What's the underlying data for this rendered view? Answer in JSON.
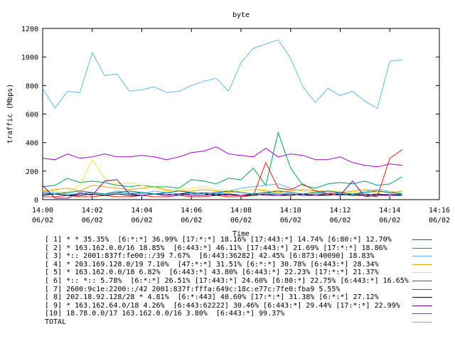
{
  "chart_data": {
    "type": "line",
    "title": "byte",
    "xlabel": "Time",
    "ylabel": "traffic (Mbps)",
    "ylim": [
      0,
      1200
    ],
    "yticks": [
      0,
      200,
      400,
      600,
      800,
      1000,
      1200
    ],
    "xlim": [
      "14:00",
      "14:16"
    ],
    "xticks": [
      {
        "time": "14:00",
        "date": "06/02"
      },
      {
        "time": "14:02",
        "date": "06/02"
      },
      {
        "time": "14:04",
        "date": "06/02"
      },
      {
        "time": "14:06",
        "date": "06/02"
      },
      {
        "time": "14:08",
        "date": "06/02"
      },
      {
        "time": "14:10",
        "date": "06/02"
      },
      {
        "time": "14:12",
        "date": "06/02"
      },
      {
        "time": "14:14",
        "date": "06/02"
      },
      {
        "time": "14:16",
        "date": "06/02"
      }
    ],
    "grid": false,
    "x": [
      "14:00:00",
      "14:00:30",
      "14:01:00",
      "14:01:30",
      "14:02:00",
      "14:02:30",
      "14:03:00",
      "14:03:30",
      "14:04:00",
      "14:04:30",
      "14:05:00",
      "14:05:30",
      "14:06:00",
      "14:06:30",
      "14:07:00",
      "14:07:30",
      "14:08:00",
      "14:08:30",
      "14:09:00",
      "14:09:30",
      "14:10:00",
      "14:10:30",
      "14:11:00",
      "14:11:30",
      "14:12:00",
      "14:12:30",
      "14:13:00",
      "14:13:30",
      "14:14:00",
      "14:14:30"
    ],
    "series": [
      {
        "name": "[ 1] * * 35.35%  [6:*:*] 36.99% [17:*:*] 18.16% [17:443:*] 14.74% [6:80:*] 12.70%",
        "color": "#a100c9",
        "values": [
          290,
          280,
          320,
          290,
          300,
          320,
          300,
          300,
          310,
          300,
          280,
          300,
          330,
          340,
          370,
          320,
          310,
          300,
          360,
          300,
          320,
          310,
          280,
          280,
          300,
          260,
          240,
          230,
          250,
          240
        ]
      },
      {
        "name": "[ 2] * 163.162.0.0/16 18.85%  [6:443:*] 46.11% [17:443:*] 21.69% [17:*:*] 18.86%",
        "color": "#00a060",
        "values": [
          90,
          100,
          150,
          120,
          130,
          120,
          100,
          90,
          100,
          90,
          90,
          80,
          140,
          130,
          110,
          150,
          140,
          220,
          100,
          470,
          220,
          100,
          80,
          110,
          120,
          110,
          130,
          100,
          110,
          160
        ]
      },
      {
        "name": "[ 3] *:: 2001:837f:fe00::/39 7.67%  [6:443:36282] 42.45% [6:873:40090] 18.83%",
        "color": "#56b4e9",
        "values": [
          60,
          50,
          40,
          40,
          50,
          40,
          60,
          50,
          40,
          60,
          50,
          40,
          40,
          30,
          40,
          60,
          80,
          90,
          100,
          110,
          80,
          60,
          50,
          50,
          40,
          30,
          60,
          70,
          60,
          40
        ]
      },
      {
        "name": "[ 4] * 203.169.128.0/19 7.10%  [47:*:*] 31.51% [6:*:*] 30.78% [6:443:*] 28.34%",
        "color": "#e69f00",
        "values": [
          60,
          70,
          80,
          60,
          100,
          90,
          80,
          70,
          80,
          90,
          70,
          60,
          60,
          70,
          60,
          50,
          60,
          70,
          60,
          50,
          60,
          70,
          60,
          60,
          50,
          60,
          70,
          60,
          50,
          60
        ]
      },
      {
        "name": "[ 5] * 163.162.0.0/18 6.82%  [6:443:*] 43.80% [6:443:*] 22.23% [17:*:*] 21.37%",
        "color": "#f0e442",
        "values": [
          70,
          60,
          50,
          100,
          280,
          150,
          110,
          120,
          100,
          80,
          60,
          70,
          80,
          90,
          70,
          60,
          60,
          70,
          70,
          60,
          70,
          60,
          50,
          60,
          60,
          50,
          60,
          50,
          60,
          50
        ]
      },
      {
        "name": "[ 6] *:: *:: 5.78%  [6:*:*] 26.51% [17:443:*] 24.60% [6:80:*] 22.75% [6:443:*] 16.65%",
        "color": "#0072b2",
        "values": [
          40,
          40,
          30,
          40,
          50,
          40,
          50,
          40,
          50,
          40,
          40,
          30,
          40,
          50,
          40,
          40,
          30,
          40,
          50,
          40,
          40,
          30,
          40,
          40,
          30,
          40,
          40,
          30,
          40,
          30
        ]
      },
      {
        "name": "[ 7] 2600:9c1e:2200::/42 2001:837f:fffa:649c:18c:e77c:7fe0:fba9 5.55%",
        "color": "#e51e10",
        "values": [
          20,
          20,
          30,
          20,
          20,
          30,
          20,
          20,
          30,
          20,
          20,
          30,
          20,
          20,
          30,
          20,
          20,
          30,
          260,
          80,
          70,
          110,
          60,
          40,
          50,
          40,
          30,
          20,
          290,
          350
        ]
      },
      {
        "name": "[ 8] 202.18.92.128/28 * 4.81%  [6:*:443] 40.60% [17:*:*] 31.38% [6:*:*] 27.12%",
        "color": "#000000",
        "values": [
          30,
          40,
          30,
          30,
          40,
          30,
          40,
          30,
          30,
          40,
          30,
          40,
          50,
          40,
          30,
          40,
          30,
          30,
          40,
          30,
          30,
          40,
          30,
          30,
          40,
          30,
          30,
          40,
          30,
          30
        ]
      },
      {
        "name": "[ 9] * 163.162.64.0/18 4.26%  [6:443:62222] 30.46% [6:443:*] 29.44% [17:*:*] 22.99%",
        "color": "#7b00a0",
        "values": [
          100,
          10,
          10,
          50,
          30,
          130,
          140,
          40,
          30,
          40,
          30,
          40,
          30,
          30,
          40,
          30,
          30,
          40,
          30,
          30,
          40,
          30,
          30,
          40,
          30,
          130,
          20,
          30,
          30,
          40
        ]
      },
      {
        "name": "[10] 18.78.0.0/17 163.162.0.0/16 3.80%  [6:443:*] 99.37%",
        "color": "#008080",
        "values": [
          50,
          40,
          50,
          60,
          50,
          40,
          50,
          60,
          50,
          40,
          50,
          60,
          50,
          40,
          50,
          60,
          50,
          40,
          50,
          60,
          50,
          40,
          50,
          60,
          50,
          40,
          50,
          60,
          50,
          40
        ]
      },
      {
        "name": "TOTAL",
        "color": "#5fb8e8",
        "values": [
          780,
          640,
          760,
          750,
          1030,
          870,
          880,
          760,
          770,
          790,
          750,
          760,
          800,
          830,
          850,
          760,
          960,
          1060,
          1090,
          1120,
          990,
          790,
          680,
          780,
          730,
          760,
          690,
          640,
          970,
          980
        ]
      }
    ]
  }
}
